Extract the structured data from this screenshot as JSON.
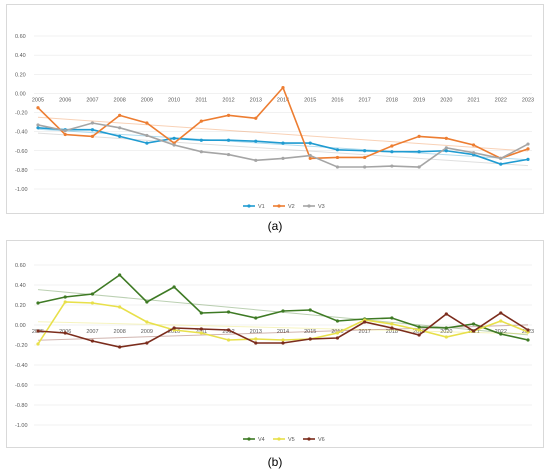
{
  "panel_labels": [
    "(a)",
    "(b)"
  ],
  "chart_data": [
    {
      "type": "line",
      "label": "(a)",
      "x": [
        "2005",
        "2006",
        "2007",
        "2008",
        "2009",
        "2010",
        "2011",
        "2012",
        "2013",
        "2014",
        "2015",
        "2016",
        "2017",
        "2018",
        "2019",
        "2020",
        "2021",
        "2022",
        "2023"
      ],
      "yticks": [
        "0.60",
        "0.40",
        "0.20",
        "0.00",
        "-0.20",
        "-0.40",
        "-0.60",
        "-0.80",
        "-1.00"
      ],
      "ylim": [
        -1.0,
        0.6
      ],
      "legend_position": "bottom",
      "series": [
        {
          "name": "V1",
          "color": "#1f9bd1",
          "trendline": true,
          "values": [
            -0.36,
            -0.38,
            -0.38,
            -0.45,
            -0.52,
            -0.47,
            -0.49,
            -0.49,
            -0.5,
            -0.52,
            -0.52,
            -0.59,
            -0.6,
            -0.61,
            -0.61,
            -0.6,
            -0.64,
            -0.74,
            -0.69
          ]
        },
        {
          "name": "V2",
          "color": "#ed7d31",
          "trendline": true,
          "values": [
            -0.15,
            -0.43,
            -0.45,
            -0.23,
            -0.31,
            -0.52,
            -0.29,
            -0.23,
            -0.26,
            0.06,
            -0.68,
            -0.67,
            -0.67,
            -0.55,
            -0.45,
            -0.47,
            -0.54,
            -0.68,
            -0.58
          ]
        },
        {
          "name": "V3",
          "color": "#a5a5a5",
          "trendline": true,
          "values": [
            -0.33,
            -0.39,
            -0.31,
            -0.36,
            -0.44,
            -0.54,
            -0.61,
            -0.64,
            -0.7,
            -0.68,
            -0.65,
            -0.77,
            -0.77,
            -0.76,
            -0.77,
            -0.57,
            -0.62,
            -0.68,
            -0.53
          ]
        }
      ]
    },
    {
      "type": "line",
      "label": "(b)",
      "x": [
        "2005",
        "2006",
        "2007",
        "2008",
        "2009",
        "2010",
        "2011",
        "2012",
        "2013",
        "2014",
        "2015",
        "2016",
        "2017",
        "2018",
        "2019",
        "2020",
        "2021",
        "2022",
        "2023"
      ],
      "yticks": [
        "0.60",
        "0.40",
        "0.20",
        "0.00",
        "-0.20",
        "-0.40",
        "-0.60",
        "-0.80",
        "-1.00"
      ],
      "ylim": [
        -1.0,
        0.6
      ],
      "legend_position": "bottom",
      "series": [
        {
          "name": "V4",
          "color": "#3e7a24",
          "trendline": true,
          "values": [
            0.22,
            0.28,
            0.31,
            0.5,
            0.23,
            0.38,
            0.12,
            0.13,
            0.07,
            0.14,
            0.15,
            0.04,
            0.06,
            0.07,
            -0.02,
            -0.03,
            0.01,
            -0.09,
            -0.15
          ]
        },
        {
          "name": "V5",
          "color": "#e8e04a",
          "trendline": true,
          "values": [
            -0.19,
            0.23,
            0.22,
            0.18,
            0.03,
            -0.05,
            -0.08,
            -0.15,
            -0.14,
            -0.15,
            -0.14,
            -0.08,
            0.05,
            0.01,
            -0.05,
            -0.12,
            -0.06,
            0.04,
            -0.07
          ]
        },
        {
          "name": "V6",
          "color": "#7b2c1c",
          "trendline": true,
          "values": [
            -0.06,
            -0.08,
            -0.16,
            -0.22,
            -0.18,
            -0.03,
            -0.04,
            -0.05,
            -0.18,
            -0.18,
            -0.14,
            -0.13,
            0.03,
            -0.03,
            -0.1,
            0.11,
            -0.06,
            0.12,
            -0.05
          ]
        }
      ]
    }
  ]
}
